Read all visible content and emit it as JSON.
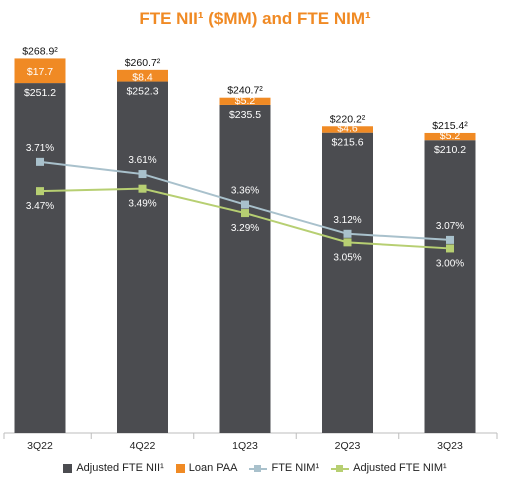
{
  "title": "FTE NII¹ ($MM) and FTE NIM¹",
  "colors": {
    "title": "#f08a24",
    "adjusted_nii": "#4b4c50",
    "loan_paa": "#f08a24",
    "fte_nim": "#a9c1cc",
    "adjusted_nim": "#b7cf72"
  },
  "legend": {
    "adjusted_nii": "Adjusted FTE NII¹",
    "loan_paa": "Loan PAA",
    "fte_nim": "FTE NIM¹",
    "adjusted_nim": "Adjusted FTE NIM¹"
  },
  "chart_data": {
    "type": "bar",
    "stacked": true,
    "title": "FTE NII¹ ($MM) and FTE NIM¹",
    "categories": [
      "3Q22",
      "4Q22",
      "1Q23",
      "2Q23",
      "3Q23"
    ],
    "series": [
      {
        "name": "Adjusted FTE NII¹",
        "kind": "bar",
        "color": "#4b4c50",
        "values": [
          251.2,
          252.3,
          235.5,
          215.6,
          210.2
        ],
        "labels": [
          "$251.2",
          "$252.3",
          "$235.5",
          "$215.6",
          "$210.2"
        ]
      },
      {
        "name": "Loan PAA",
        "kind": "bar",
        "color": "#f08a24",
        "values": [
          17.7,
          8.4,
          5.2,
          4.6,
          5.2
        ],
        "labels": [
          "$17.7",
          "$8.4",
          "$5.2",
          "$4.6",
          "$5.2"
        ]
      },
      {
        "name": "FTE NIM¹",
        "kind": "line",
        "color": "#a9c1cc",
        "values": [
          3.71,
          3.61,
          3.36,
          3.12,
          3.07
        ],
        "labels": [
          "3.71%",
          "3.61%",
          "3.36%",
          "3.12%",
          "3.07%"
        ]
      },
      {
        "name": "Adjusted FTE NIM¹",
        "kind": "line",
        "color": "#b7cf72",
        "values": [
          3.47,
          3.49,
          3.29,
          3.05,
          3.0
        ],
        "labels": [
          "3.47%",
          "3.49%",
          "3.29%",
          "3.05%",
          "3.00%"
        ]
      }
    ],
    "totals": [
      268.9,
      260.7,
      240.7,
      220.2,
      215.4
    ],
    "total_labels": [
      "$268.9²",
      "$260.7²",
      "$240.7²",
      "$220.2²",
      "$215.4²"
    ],
    "bar_axis_range": [
      0,
      285
    ],
    "line_axis_range": [
      2.2,
      4.25
    ],
    "grid": false,
    "legend_position": "bottom"
  }
}
